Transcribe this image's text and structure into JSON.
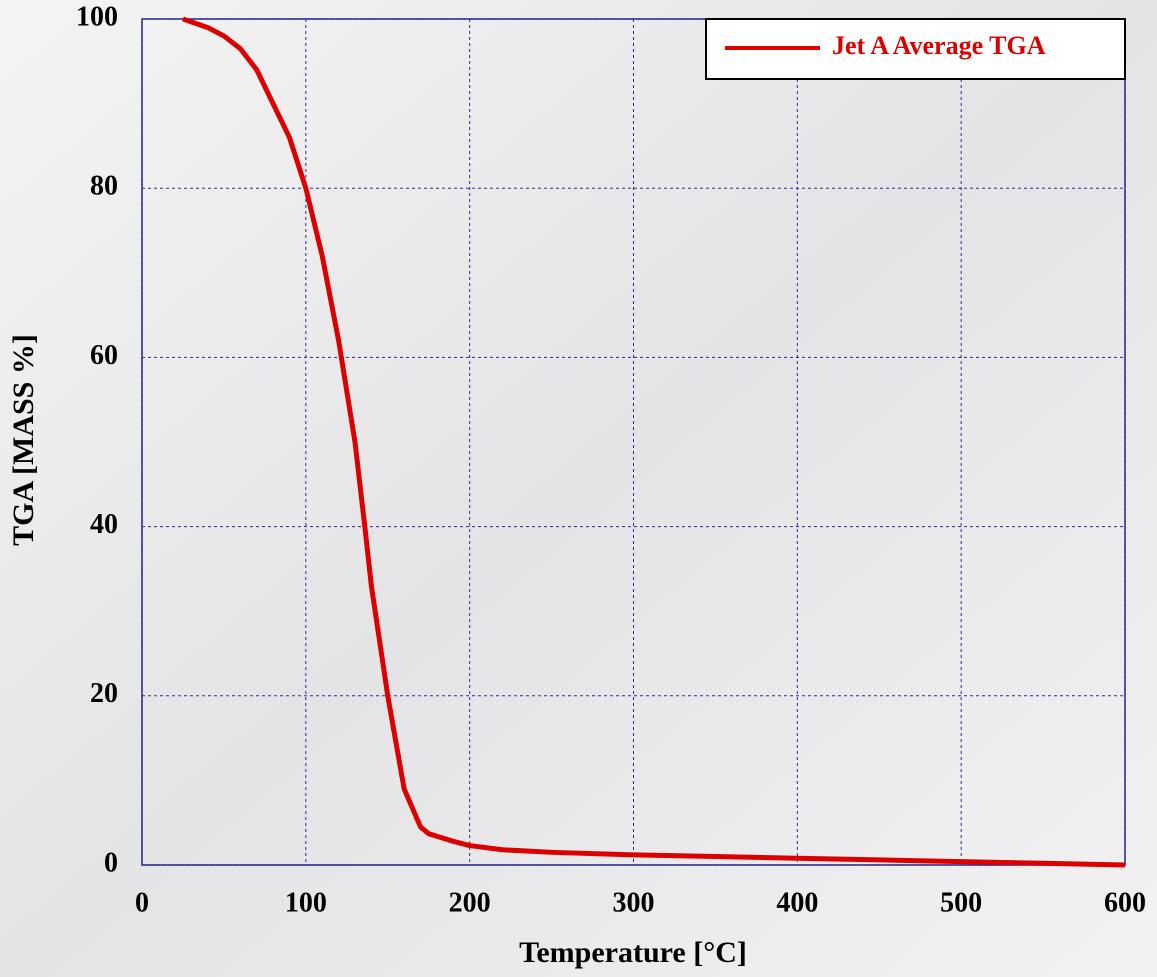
{
  "chart_data": {
    "type": "line",
    "x_label": "Temperature [°C]",
    "y_label": "TGA [MASS %]",
    "x": [
      25,
      40,
      50,
      60,
      70,
      80,
      90,
      100,
      110,
      120,
      130,
      136,
      140,
      150,
      160,
      170,
      175,
      180,
      190,
      200,
      220,
      250,
      300,
      350,
      400,
      450,
      500,
      550,
      600
    ],
    "series": [
      {
        "name": "Jet A Average TGA",
        "color": "#dd0000",
        "values": [
          100,
          99,
          98,
          96.5,
          94,
          90,
          86,
          80,
          72,
          62,
          50,
          40,
          33,
          20,
          9,
          4.5,
          3.7,
          3.4,
          2.8,
          2.3,
          1.8,
          1.5,
          1.2,
          1.0,
          0.8,
          0.6,
          0.4,
          0.2,
          0
        ]
      }
    ],
    "xlim": [
      0,
      600
    ],
    "xticks": [
      0,
      100,
      200,
      300,
      400,
      500,
      600
    ],
    "ylim": [
      0,
      100
    ],
    "yticks": [
      0,
      20,
      40,
      60,
      80,
      100
    ],
    "grid": true,
    "legend": "upper right"
  }
}
